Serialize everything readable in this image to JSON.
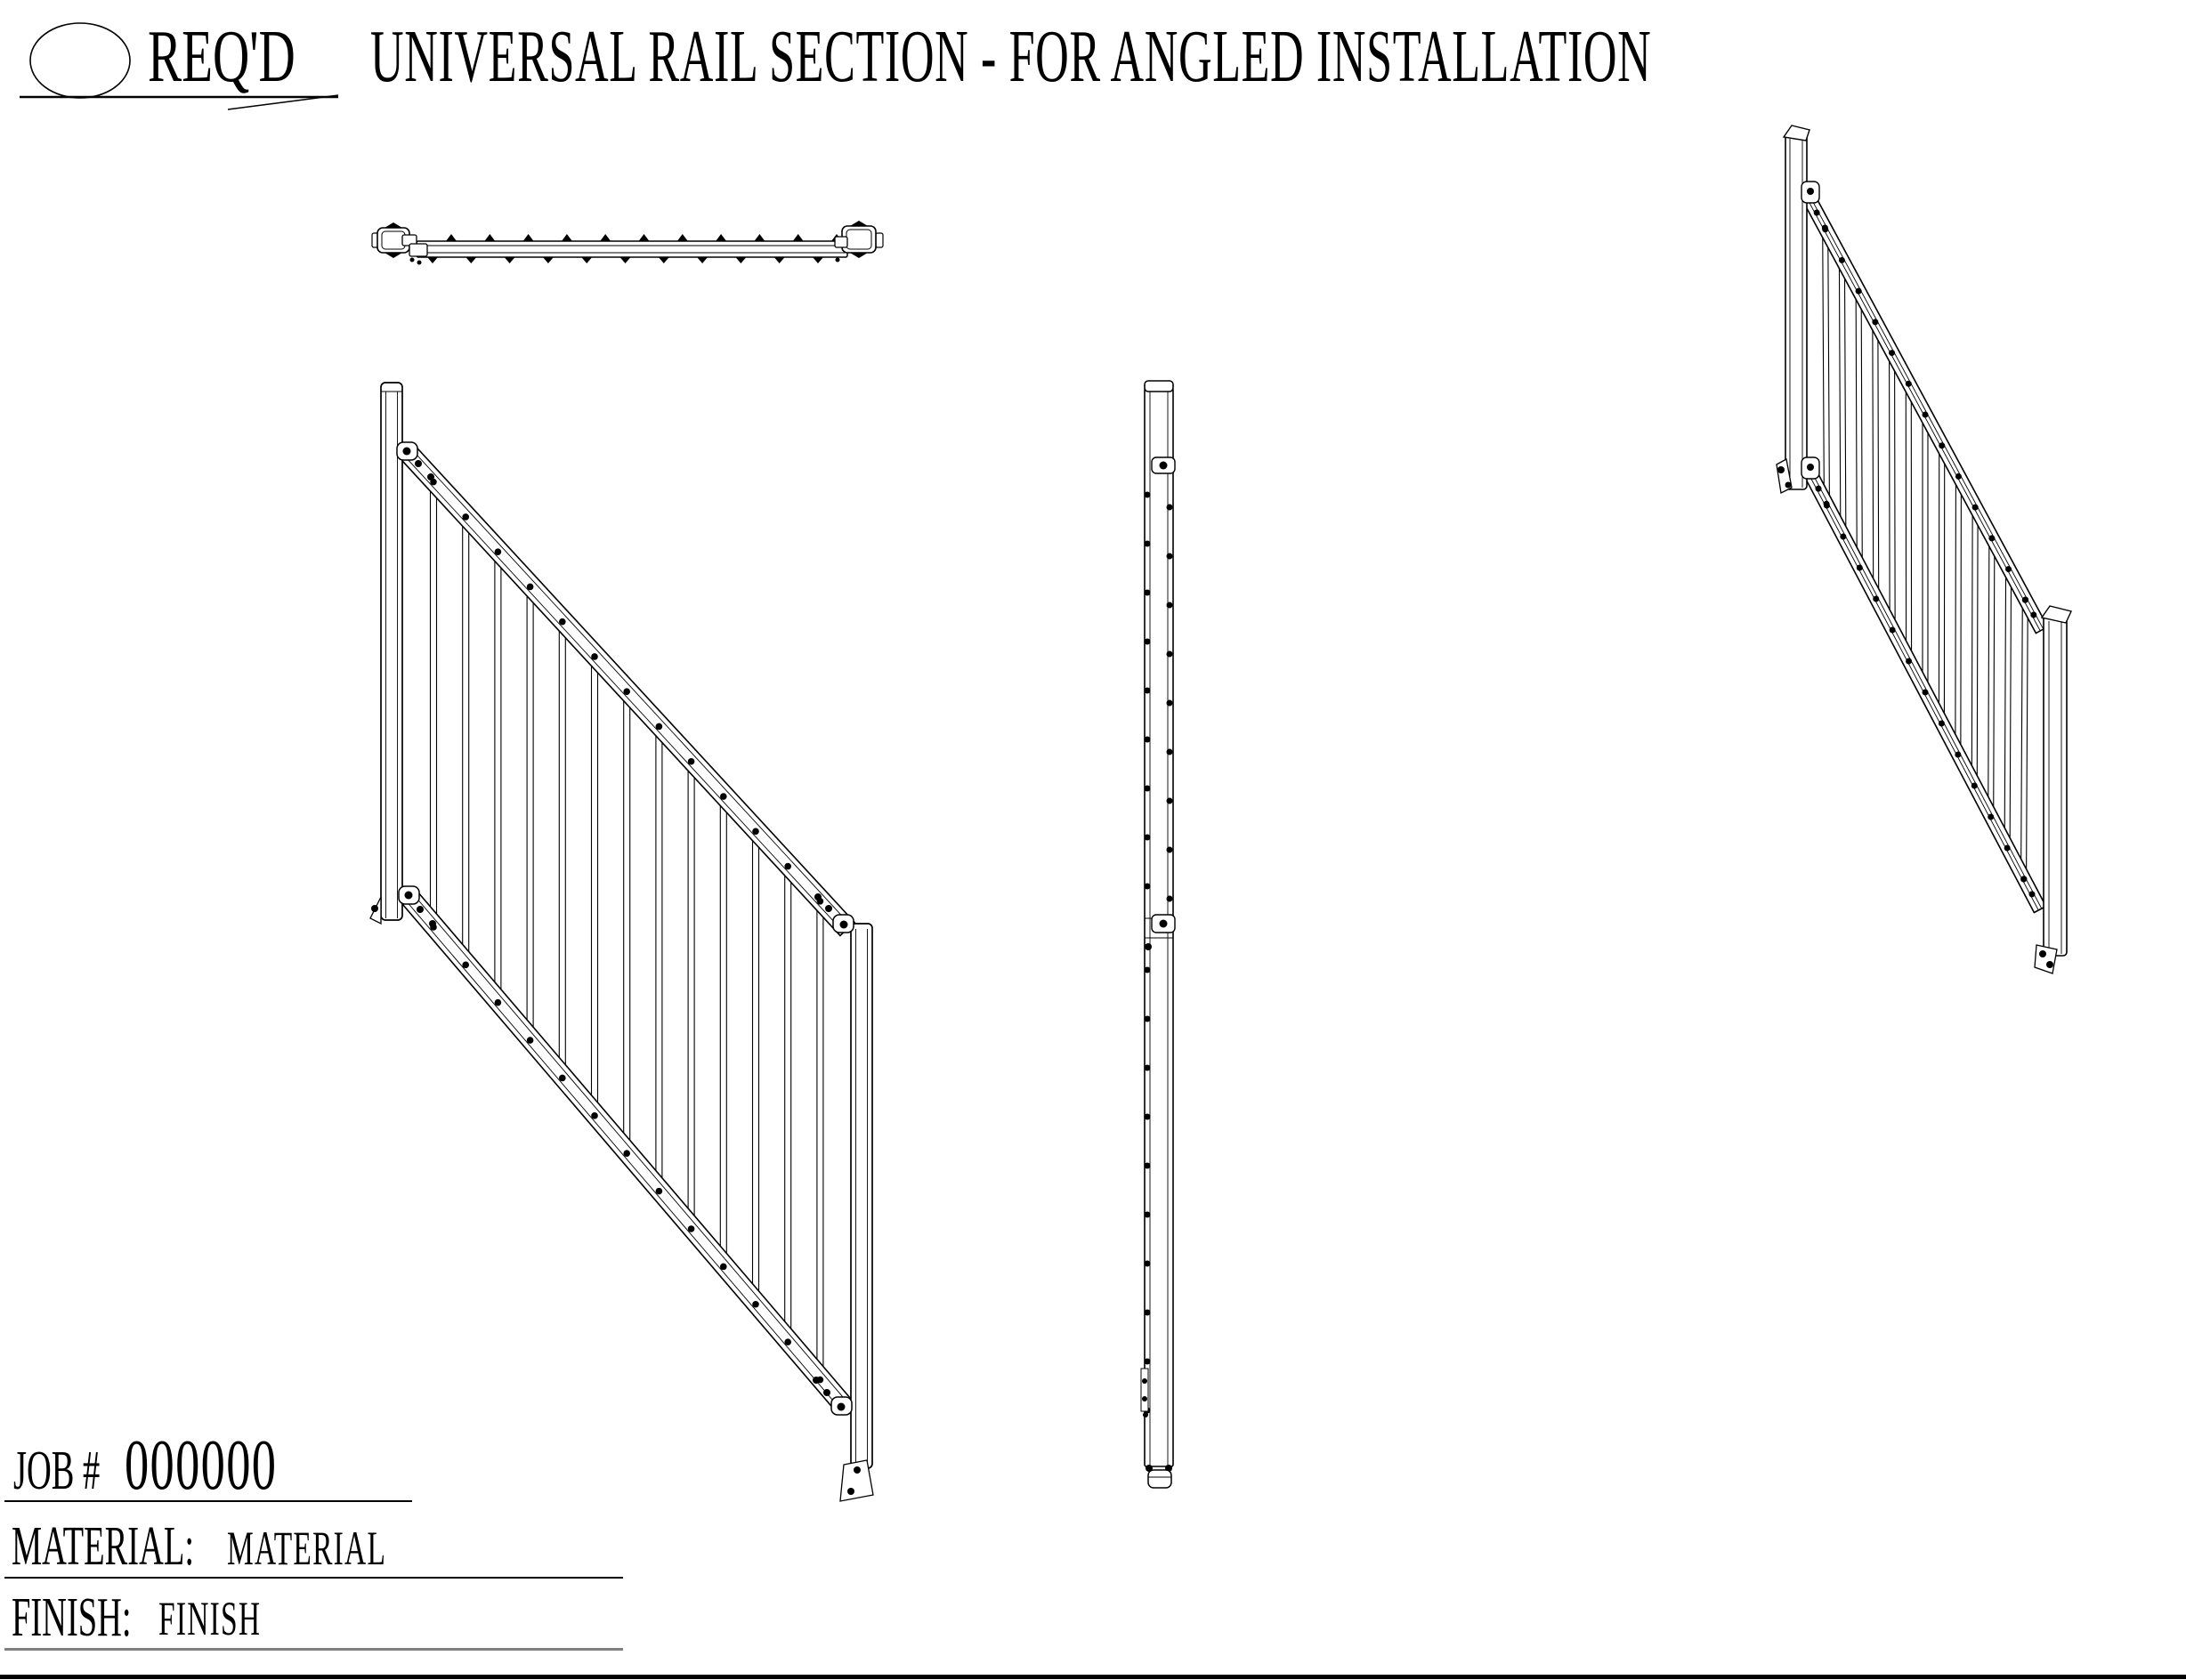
{
  "header": {
    "req_label": "REQ'D",
    "req_quantity_value": "",
    "title": "UNIVERSAL RAIL SECTION - FOR ANGLED INSTALLATION"
  },
  "fields": {
    "job": {
      "label": "JOB #",
      "value": "000000"
    },
    "material": {
      "label": "MATERIAL:",
      "value": "MATERIAL"
    },
    "finish": {
      "label": "FINISH:",
      "value": "FINISH"
    }
  },
  "colors": {
    "line": "#000000",
    "finish_underline": "#808080",
    "background": "#ffffff"
  }
}
